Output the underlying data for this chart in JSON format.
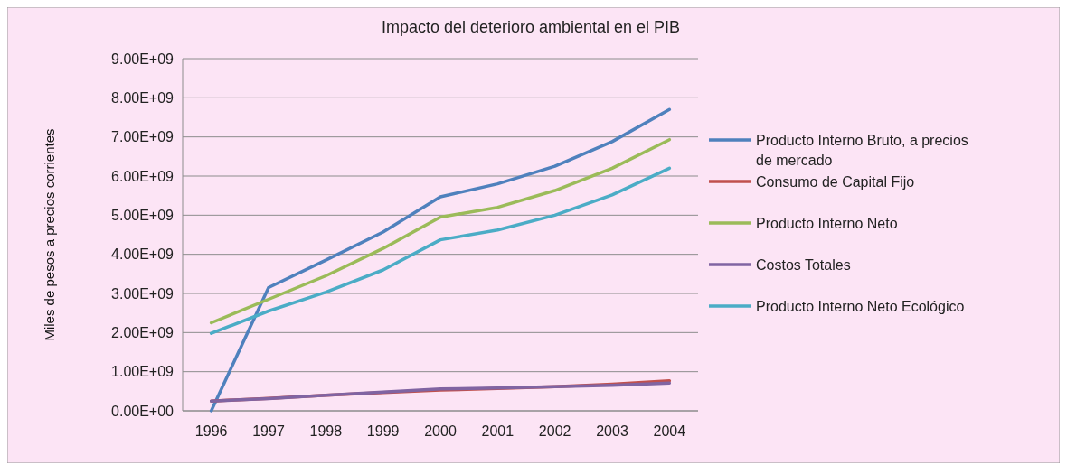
{
  "chart_data": {
    "type": "line",
    "title": "Impacto del deterioro ambiental en el PIB",
    "ylabel": "Miles de pesos a precios corrientes",
    "categories": [
      "1996",
      "1997",
      "1998",
      "1999",
      "2000",
      "2001",
      "2002",
      "2003",
      "2004"
    ],
    "series": [
      {
        "name": "Producto Interno Bruto, a precios de mercado",
        "color": "#4f81bd",
        "values": [
          0,
          3150000000.0,
          3850000000.0,
          4570000000.0,
          5470000000.0,
          5800000000.0,
          6250000000.0,
          6880000000.0,
          7700000000.0
        ]
      },
      {
        "name": "Consumo de Capital Fijo",
        "color": "#c0504d",
        "values": [
          250000000.0,
          320000000.0,
          400000000.0,
          470000000.0,
          530000000.0,
          570000000.0,
          620000000.0,
          680000000.0,
          770000000.0
        ]
      },
      {
        "name": "Producto Interno Neto",
        "color": "#9bbb59",
        "values": [
          2250000000.0,
          2850000000.0,
          3450000000.0,
          4150000000.0,
          4950000000.0,
          5200000000.0,
          5630000000.0,
          6200000000.0,
          6930000000.0
        ]
      },
      {
        "name": "Costos Totales",
        "color": "#8064a2",
        "values": [
          250000000.0,
          310000000.0,
          400000000.0,
          480000000.0,
          560000000.0,
          580000000.0,
          620000000.0,
          650000000.0,
          710000000.0
        ]
      },
      {
        "name": "Producto Interno Neto Ecológico",
        "color": "#4bacc6",
        "values": [
          1980000000.0,
          2550000000.0,
          3030000000.0,
          3600000000.0,
          4370000000.0,
          4620000000.0,
          5000000000.0,
          5520000000.0,
          6200000000.0
        ]
      }
    ],
    "ylim": [
      0,
      9000000000.0
    ],
    "yticks": [
      {
        "value": 0,
        "label": "0.00E+00"
      },
      {
        "value": 1000000000.0,
        "label": "1.00E+09"
      },
      {
        "value": 2000000000.0,
        "label": "2.00E+09"
      },
      {
        "value": 3000000000.0,
        "label": "3.00E+09"
      },
      {
        "value": 4000000000.0,
        "label": "4.00E+09"
      },
      {
        "value": 5000000000.0,
        "label": "5.00E+09"
      },
      {
        "value": 6000000000.0,
        "label": "6.00E+09"
      },
      {
        "value": 7000000000.0,
        "label": "7.00E+09"
      },
      {
        "value": 8000000000.0,
        "label": "8.00E+09"
      },
      {
        "value": 9000000000.0,
        "label": "9.00E+09"
      }
    ],
    "grid": "y",
    "legend": "right",
    "marker": "none",
    "line_style": "solid"
  }
}
